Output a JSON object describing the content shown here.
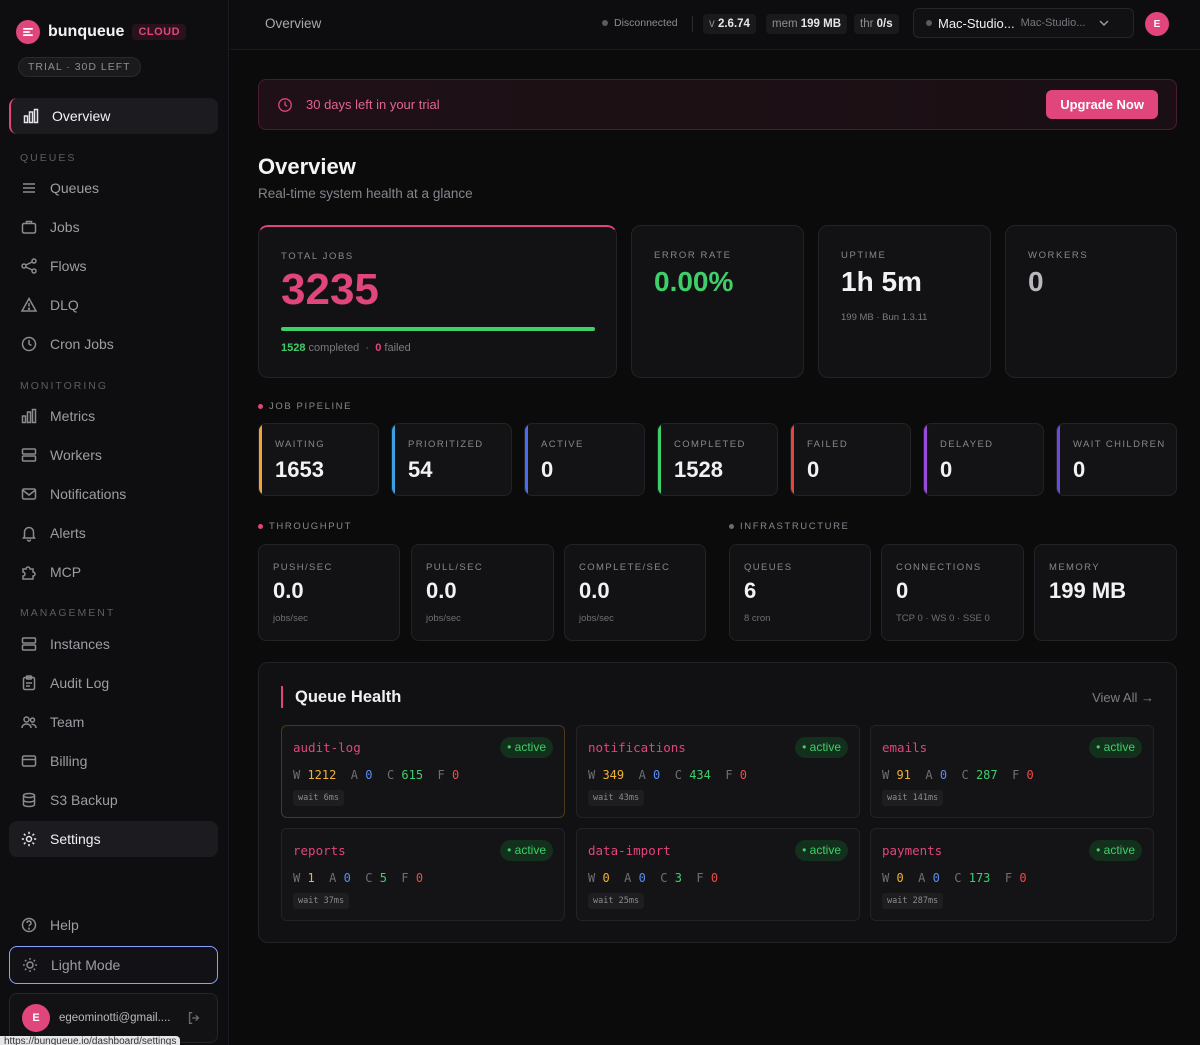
{
  "brand": {
    "name": "bunqueue",
    "tier": "CLOUD",
    "trial_badge": "TRIAL · 30D LEFT"
  },
  "sidebar": {
    "overview": "Overview",
    "sections": {
      "queues": "QUEUES",
      "monitoring": "MONITORING",
      "management": "MANAGEMENT"
    },
    "items": {
      "queues": "Queues",
      "jobs": "Jobs",
      "flows": "Flows",
      "dlq": "DLQ",
      "cron": "Cron Jobs",
      "metrics": "Metrics",
      "workers": "Workers",
      "notifications": "Notifications",
      "alerts": "Alerts",
      "mcp": "MCP",
      "instances": "Instances",
      "audit": "Audit Log",
      "team": "Team",
      "billing": "Billing",
      "backup": "S3 Backup",
      "settings": "Settings"
    },
    "help": "Help",
    "light_mode": "Light Mode",
    "user": {
      "initial": "E",
      "email": "egeominotti@gmail...."
    },
    "status_url": "https://bunqueue.io/dashboard/settings"
  },
  "topbar": {
    "crumb": "Overview",
    "connection": "Disconnected",
    "version_label": "v",
    "version": "2.6.74",
    "mem_label": "mem",
    "mem": "199 MB",
    "thr_label": "thr",
    "thr": "0/s",
    "instance_name": "Mac-Studio...",
    "instance_sub": "Mac-Studio...",
    "avatar": "E"
  },
  "banner": {
    "text": "30 days left in your trial",
    "button": "Upgrade Now"
  },
  "page": {
    "title": "Overview",
    "subtitle": "Real-time system health at a glance"
  },
  "stats": {
    "total_jobs": {
      "label": "TOTAL JOBS",
      "value": "3235",
      "completed": "1528",
      "completed_label": "completed",
      "failed": "0",
      "failed_label": "failed",
      "progress": 1.0
    },
    "error_rate": {
      "label": "ERROR RATE",
      "value": "0.00%"
    },
    "uptime": {
      "label": "UPTIME",
      "value": "1h 5m",
      "sub": "199 MB · Bun 1.3.11"
    },
    "workers": {
      "label": "WORKERS",
      "value": "0"
    }
  },
  "pipeline": {
    "heading": "JOB PIPELINE",
    "items": [
      {
        "label": "WAITING",
        "value": "1653",
        "color": "#f2a431"
      },
      {
        "label": "PRIORITIZED",
        "value": "54",
        "color": "#3ea0e0"
      },
      {
        "label": "ACTIVE",
        "value": "0",
        "color": "#4a6cf0"
      },
      {
        "label": "COMPLETED",
        "value": "1528",
        "color": "#3ecf6a"
      },
      {
        "label": "FAILED",
        "value": "0",
        "color": "#e8453c"
      },
      {
        "label": "DELAYED",
        "value": "0",
        "color": "#9a4ad8"
      },
      {
        "label": "WAIT CHILDREN",
        "value": "0",
        "color": "#6a4ae0"
      }
    ]
  },
  "throughput": {
    "heading": "THROUGHPUT",
    "items": [
      {
        "label": "PUSH/SEC",
        "value": "0.0",
        "sub": "jobs/sec"
      },
      {
        "label": "PULL/SEC",
        "value": "0.0",
        "sub": "jobs/sec"
      },
      {
        "label": "COMPLETE/SEC",
        "value": "0.0",
        "sub": "jobs/sec"
      }
    ]
  },
  "infrastructure": {
    "heading": "INFRASTRUCTURE",
    "items": [
      {
        "label": "QUEUES",
        "value": "6",
        "sub": "8 cron"
      },
      {
        "label": "CONNECTIONS",
        "value": "0",
        "sub": "TCP 0 · WS 0 · SSE 0"
      },
      {
        "label": "MEMORY",
        "value": "199 MB",
        "sub": ""
      }
    ]
  },
  "queue_health": {
    "title": "Queue Health",
    "view_all": "View All →",
    "queues": [
      {
        "name": "audit-log",
        "status": "active",
        "w": "1212",
        "a": "0",
        "c": "615",
        "f": "0",
        "wait": "wait 6ms"
      },
      {
        "name": "notifications",
        "status": "active",
        "w": "349",
        "a": "0",
        "c": "434",
        "f": "0",
        "wait": "wait 43ms"
      },
      {
        "name": "emails",
        "status": "active",
        "w": "91",
        "a": "0",
        "c": "287",
        "f": "0",
        "wait": "wait 141ms"
      },
      {
        "name": "reports",
        "status": "active",
        "w": "1",
        "a": "0",
        "c": "5",
        "f": "0",
        "wait": "wait 37ms"
      },
      {
        "name": "data-import",
        "status": "active",
        "w": "0",
        "a": "0",
        "c": "3",
        "f": "0",
        "wait": "wait 25ms"
      },
      {
        "name": "payments",
        "status": "active",
        "w": "0",
        "a": "0",
        "c": "173",
        "f": "0",
        "wait": "wait 287ms"
      }
    ]
  }
}
